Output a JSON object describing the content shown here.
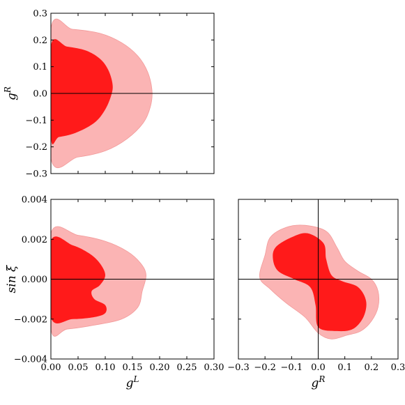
{
  "chart_data": [
    {
      "id": "gL-gR",
      "type": "contour",
      "xlabel": "",
      "ylabel": "g^R",
      "xlim": [
        0.0,
        0.3
      ],
      "ylim": [
        -0.3,
        0.3
      ],
      "xticks": [
        0.0,
        0.05,
        0.1,
        0.15,
        0.2,
        0.25,
        0.3
      ],
      "xtick_labels": [
        "",
        "",
        "",
        "",
        "",
        "",
        ""
      ],
      "yticks": [
        -0.3,
        -0.2,
        -0.1,
        0.0,
        0.1,
        0.2,
        0.3
      ],
      "ytick_labels": [
        "−0.3",
        "−0.2",
        "−0.1",
        "0.0",
        "0.1",
        "0.2",
        "0.3"
      ],
      "zero_lines": {
        "horizontal": 0.0
      },
      "regions": [
        {
          "level": "outer",
          "color": "#fbb4b4",
          "points": [
            [
              0.0,
              0.243
            ],
            [
              0.04,
              0.24
            ],
            [
              0.09,
              0.225
            ],
            [
              0.13,
              0.19
            ],
            [
              0.16,
              0.14
            ],
            [
              0.178,
              0.08
            ],
            [
              0.186,
              0.01
            ],
            [
              0.183,
              -0.05
            ],
            [
              0.17,
              -0.11
            ],
            [
              0.14,
              -0.17
            ],
            [
              0.1,
              -0.215
            ],
            [
              0.05,
              -0.238
            ],
            [
              0.0,
              -0.243
            ]
          ]
        },
        {
          "level": "inner",
          "color": "#ff1a1a",
          "points": [
            [
              0.0,
              0.178
            ],
            [
              0.03,
              0.175
            ],
            [
              0.065,
              0.16
            ],
            [
              0.09,
              0.13
            ],
            [
              0.105,
              0.09
            ],
            [
              0.113,
              0.04
            ],
            [
              0.112,
              0.0
            ],
            [
              0.1,
              -0.06
            ],
            [
              0.08,
              -0.11
            ],
            [
              0.045,
              -0.148
            ],
            [
              0.015,
              -0.163
            ],
            [
              0.0,
              -0.165
            ]
          ]
        }
      ]
    },
    {
      "id": "gL-sinxi",
      "type": "contour",
      "xlabel": "g^L",
      "ylabel": "sin ξ",
      "xlim": [
        0.0,
        0.3
      ],
      "ylim": [
        -0.004,
        0.004
      ],
      "xticks": [
        0.0,
        0.05,
        0.1,
        0.15,
        0.2,
        0.25,
        0.3
      ],
      "xtick_labels": [
        "0.00",
        "0.05",
        "0.10",
        "0.15",
        "0.20",
        "0.25",
        "0.30"
      ],
      "yticks": [
        -0.004,
        -0.002,
        0.0,
        0.002,
        0.004
      ],
      "ytick_labels": [
        "−0.004",
        "−0.002",
        "0.000",
        "0.002",
        "0.004"
      ],
      "zero_lines": {
        "horizontal": 0.0
      },
      "regions": [
        {
          "level": "outer",
          "color": "#fbb4b4",
          "points": [
            [
              0.0,
              0.0023
            ],
            [
              0.05,
              0.0022
            ],
            [
              0.1,
              0.0019
            ],
            [
              0.14,
              0.0014
            ],
            [
              0.165,
              0.0008
            ],
            [
              0.175,
              0.0002
            ],
            [
              0.168,
              -0.0006
            ],
            [
              0.16,
              -0.0014
            ],
            [
              0.13,
              -0.002
            ],
            [
              0.08,
              -0.0023
            ],
            [
              0.03,
              -0.0025
            ],
            [
              0.0,
              -0.0025
            ]
          ]
        },
        {
          "level": "inner",
          "color": "#ff1a1a",
          "points": [
            [
              0.0,
              0.0019
            ],
            [
              0.04,
              0.0017
            ],
            [
              0.07,
              0.0013
            ],
            [
              0.09,
              0.0008
            ],
            [
              0.1,
              0.0002
            ],
            [
              0.09,
              -0.0003
            ],
            [
              0.075,
              -0.0006
            ],
            [
              0.08,
              -0.001
            ],
            [
              0.1,
              -0.0013
            ],
            [
              0.1,
              -0.0017
            ],
            [
              0.08,
              -0.0019
            ],
            [
              0.04,
              -0.002
            ],
            [
              0.0,
              -0.0019
            ]
          ]
        }
      ]
    },
    {
      "id": "gR-sinxi",
      "type": "contour",
      "xlabel": "g^R",
      "ylabel": "",
      "xlim": [
        -0.3,
        0.3
      ],
      "ylim": [
        -0.004,
        0.004
      ],
      "xticks": [
        -0.3,
        -0.2,
        -0.1,
        0.0,
        0.1,
        0.2,
        0.3
      ],
      "xtick_labels": [
        "−0.3",
        "−0.2",
        "−0.1",
        "0.0",
        "0.1",
        "0.2",
        "0.3"
      ],
      "yticks": [
        -0.004,
        -0.002,
        0.0,
        0.002,
        0.004
      ],
      "ytick_labels": [
        "",
        "",
        "",
        "",
        ""
      ],
      "zero_lines": {
        "horizontal": 0.0,
        "vertical": 0.0
      },
      "regions": [
        {
          "level": "outer",
          "color": "#fbb4b4",
          "points": [
            [
              -0.18,
              0.0021
            ],
            [
              -0.12,
              0.0026
            ],
            [
              -0.05,
              0.0027
            ],
            [
              0.03,
              0.0024
            ],
            [
              0.07,
              0.0016
            ],
            [
              0.1,
              0.0009
            ],
            [
              0.15,
              0.0004
            ],
            [
              0.2,
              0.0
            ],
            [
              0.225,
              -0.0006
            ],
            [
              0.225,
              -0.0014
            ],
            [
              0.2,
              -0.0021
            ],
            [
              0.16,
              -0.0026
            ],
            [
              0.11,
              -0.0028
            ],
            [
              0.05,
              -0.003
            ],
            [
              0.0,
              -0.0027
            ],
            [
              -0.05,
              -0.0019
            ],
            [
              -0.12,
              -0.0012
            ],
            [
              -0.18,
              -0.0005
            ],
            [
              -0.22,
              0.0001
            ],
            [
              -0.2,
              0.0012
            ]
          ]
        },
        {
          "level": "inner",
          "color": "#ff1a1a",
          "points": [
            [
              -0.16,
              0.0016
            ],
            [
              -0.1,
              0.0021
            ],
            [
              -0.04,
              0.0023
            ],
            [
              0.02,
              0.0018
            ],
            [
              0.03,
              0.001
            ],
            [
              0.05,
              0.0002
            ],
            [
              0.09,
              -0.0001
            ],
            [
              0.15,
              -0.0004
            ],
            [
              0.18,
              -0.0011
            ],
            [
              0.17,
              -0.0019
            ],
            [
              0.13,
              -0.0025
            ],
            [
              0.07,
              -0.0026
            ],
            [
              0.0,
              -0.0024
            ],
            [
              -0.01,
              -0.0013
            ],
            [
              -0.03,
              -0.0004
            ],
            [
              -0.09,
              0.0
            ],
            [
              -0.15,
              0.0004
            ],
            [
              -0.17,
              0.001
            ]
          ]
        }
      ]
    }
  ]
}
